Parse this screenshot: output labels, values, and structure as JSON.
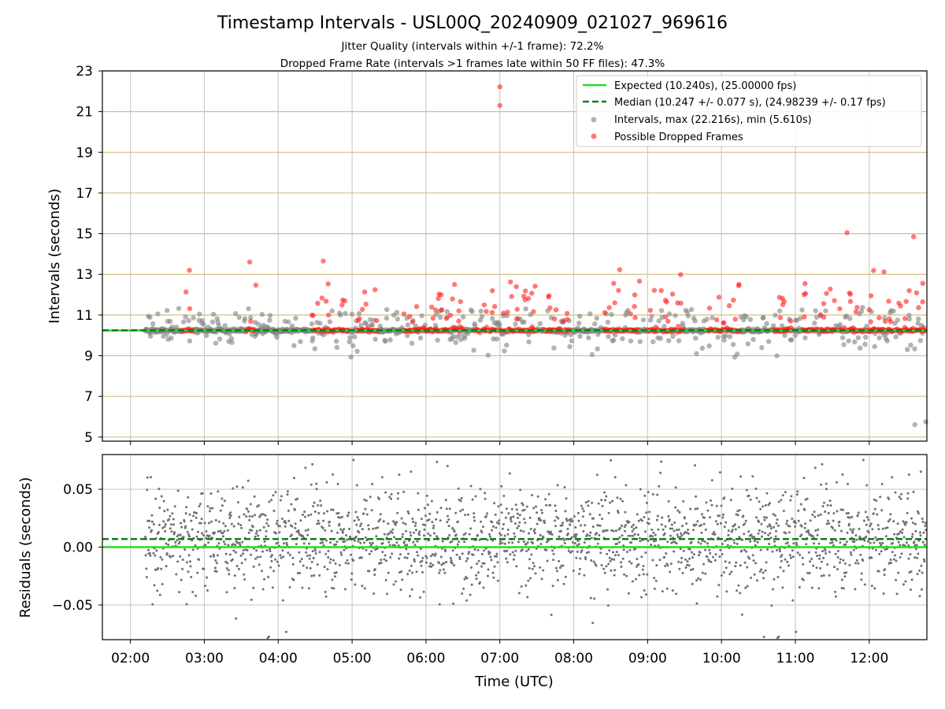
{
  "figure": {
    "title": "Timestamp Intervals - USL00Q_20240909_021027_969616",
    "subtitle_1": "Jitter Quality (intervals within +/-1 frame): 72.2%",
    "subtitle_2": "Dropped Frame Rate (intervals >1 frames late within 50 FF files): 47.3%"
  },
  "chart_data": [
    {
      "type": "scatter",
      "panel": "top",
      "ylabel": "Intervals (seconds)",
      "xlabel": "",
      "xlim_hours": [
        1.62,
        12.78
      ],
      "ylim": [
        4.8,
        23
      ],
      "yticks": [
        5,
        7,
        9,
        11,
        13,
        15,
        17,
        19,
        21,
        23
      ],
      "xticks": [
        "02:00",
        "03:00",
        "04:00",
        "05:00",
        "06:00",
        "07:00",
        "08:00",
        "09:00",
        "10:00",
        "11:00",
        "12:00"
      ],
      "grid": {
        "x": true,
        "y": true,
        "y_color": "#d4c080"
      },
      "legend_position": "top-right",
      "reference_lines": [
        {
          "name": "Expected (10.240s), (25.00000 fps)",
          "y": 10.24,
          "color": "#22dd22",
          "style": "solid"
        },
        {
          "name": "Median (10.247 +/- 0.077 s), (24.98239 +/- 0.17 fps)",
          "y": 10.247,
          "color": "#1a7a1a",
          "style": "dashed"
        }
      ],
      "series": [
        {
          "name": "Intervals, max (22.216s), min (5.610s)",
          "color": "#808080",
          "summary": {
            "max": 22.216,
            "min": 5.61,
            "median": 10.247
          }
        },
        {
          "name": "Possible Dropped Frames",
          "color": "#ff2020"
        }
      ],
      "notable_points": [
        {
          "x": "07:00",
          "y": 22.216
        },
        {
          "x": "07:00",
          "y": 21.3
        },
        {
          "x": "11:42",
          "y": 15.05
        },
        {
          "x": "12:36",
          "y": 14.85
        },
        {
          "x": "12:46",
          "y": 14.7
        },
        {
          "x": "12:37",
          "y": 5.61
        },
        {
          "x": "12:46",
          "y": 5.75
        }
      ]
    },
    {
      "type": "scatter",
      "panel": "bottom",
      "xlabel": "Time (UTC)",
      "ylabel": "Residuals (seconds)",
      "xlim_hours": [
        1.62,
        12.78
      ],
      "ylim": [
        -0.08,
        0.08
      ],
      "yticks": [
        0.05,
        0.0,
        -0.05
      ],
      "ytick_labels": [
        "0.05",
        "0.00",
        "−0.05"
      ],
      "xticks": [
        "02:00",
        "03:00",
        "04:00",
        "05:00",
        "06:00",
        "07:00",
        "08:00",
        "09:00",
        "10:00",
        "11:00",
        "12:00"
      ],
      "grid": {
        "x": true,
        "y": true
      },
      "reference_lines": [
        {
          "y": 0.0,
          "color": "#22dd22",
          "style": "solid"
        },
        {
          "y": 0.007,
          "color": "#1a7a1a",
          "style": "dashed"
        }
      ],
      "series": [
        {
          "name": "",
          "color": "#707070"
        }
      ]
    }
  ]
}
